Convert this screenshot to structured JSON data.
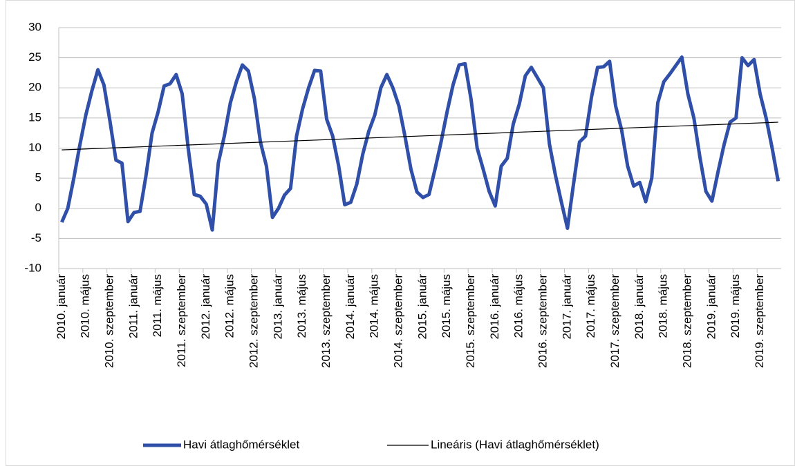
{
  "chart_data": {
    "type": "line",
    "categories": [
      "2010. január",
      null,
      null,
      null,
      "2010. május",
      null,
      null,
      null,
      "2010. szeptember",
      null,
      null,
      null,
      "2011. január",
      null,
      null,
      null,
      "2011. május",
      null,
      null,
      null,
      "2011. szeptember",
      null,
      null,
      null,
      "2012. január",
      null,
      null,
      null,
      "2012. május",
      null,
      null,
      null,
      "2012. szeptember",
      null,
      null,
      null,
      "2013. január",
      null,
      null,
      null,
      "2013. május",
      null,
      null,
      null,
      "2013. szeptember",
      null,
      null,
      null,
      "2014. január",
      null,
      null,
      null,
      "2014. május",
      null,
      null,
      null,
      "2014. szeptember",
      null,
      null,
      null,
      "2015. január",
      null,
      null,
      null,
      "2015. május",
      null,
      null,
      null,
      "2015. szeptember",
      null,
      null,
      null,
      "2016. január",
      null,
      null,
      null,
      "2016. május",
      null,
      null,
      null,
      "2016. szeptember",
      null,
      null,
      null,
      "2017. január",
      null,
      null,
      null,
      "2017. május",
      null,
      null,
      null,
      "2017. szeptember",
      null,
      null,
      null,
      "2018. január",
      null,
      null,
      null,
      "2018. május",
      null,
      null,
      null,
      "2018. szeptember",
      null,
      null,
      null,
      "2019. január",
      null,
      null,
      null,
      "2019. május",
      null,
      null,
      null,
      "2019. szeptember",
      null,
      null,
      null
    ],
    "series": [
      {
        "name": "Havi átlaghőmérséklet",
        "color": "#2f4fa8",
        "values": [
          -2.3,
          0,
          5,
          10.5,
          15.5,
          19.5,
          23,
          20.5,
          14.5,
          8,
          7.5,
          -2.2,
          -0.7,
          -0.5,
          5.5,
          12.5,
          16,
          20.3,
          20.7,
          22.2,
          19,
          10,
          2.3,
          2,
          0.7,
          -3.6,
          7.5,
          12,
          17.5,
          21,
          23.8,
          22.8,
          18.2,
          11,
          7,
          -1.5,
          0,
          2.2,
          3.3,
          12,
          16.5,
          20,
          22.9,
          22.8,
          14.8,
          12,
          7,
          0.6,
          1,
          4,
          9,
          12.8,
          15.5,
          20,
          22.2,
          20,
          17,
          12,
          6.5,
          2.7,
          1.8,
          2.3,
          6.5,
          11,
          16,
          20.5,
          23.8,
          24,
          18,
          10,
          6.5,
          2.8,
          0.4,
          7,
          8.3,
          14,
          17.3,
          22,
          23.4,
          21.7,
          20,
          10.7,
          5.5,
          1,
          -3.3,
          4,
          11,
          12,
          18.5,
          23.4,
          23.5,
          24.4,
          17,
          13,
          7,
          3.7,
          4.3,
          1.1,
          5,
          17.5,
          21,
          22.3,
          23.7,
          25.1,
          19,
          15,
          8.5,
          2.8,
          1.2,
          6,
          10.5,
          14.3,
          15,
          25,
          23.7,
          24.7,
          19,
          15,
          10,
          4.5
        ]
      }
    ],
    "trendline": {
      "name": "Lineáris (Havi átlaghőmérséklet)",
      "color": "#000000",
      "values": [
        9.7,
        14.3
      ]
    },
    "ylim": [
      -10,
      30
    ],
    "yticks": [
      -10,
      -5,
      0,
      5,
      10,
      15,
      20,
      25,
      30
    ],
    "grid": true
  }
}
